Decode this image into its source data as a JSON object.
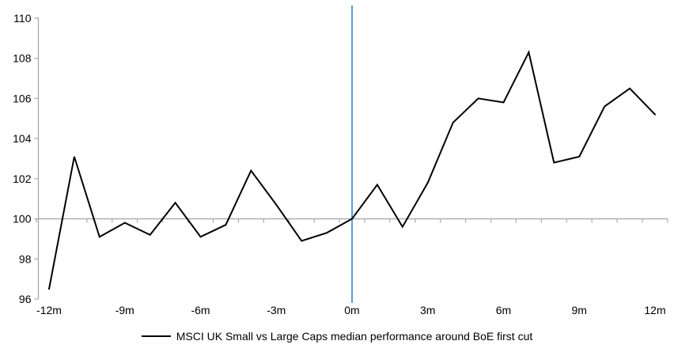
{
  "chart_data": {
    "type": "line",
    "title": "",
    "xlabel": "",
    "ylabel": "",
    "x_unit": "months relative to first BoE rate cut",
    "x": [
      -12,
      -11,
      -10,
      -9,
      -8,
      -7,
      -6,
      -5,
      -4,
      -3,
      -2,
      -1,
      0,
      1,
      2,
      3,
      4,
      5,
      6,
      7,
      8,
      9,
      10,
      11,
      12
    ],
    "series": [
      {
        "name": "MSCI UK Small vs Large Caps median performance around BoE first cut",
        "color": "#000000",
        "width": 2,
        "values": [
          96.5,
          103.1,
          99.1,
          99.8,
          99.2,
          100.8,
          99.1,
          99.7,
          102.4,
          100.7,
          98.9,
          99.3,
          100.0,
          101.7,
          99.6,
          101.8,
          104.8,
          106.0,
          105.8,
          108.3,
          102.8,
          103.1,
          105.6,
          106.5,
          105.2
        ]
      }
    ],
    "ylim": [
      96,
      110
    ],
    "y_ticks": [
      96,
      98,
      100,
      102,
      104,
      106,
      108,
      110
    ],
    "x_ticks": [
      -12,
      -9,
      -6,
      -3,
      0,
      3,
      6,
      9,
      12
    ],
    "x_tick_labels": [
      "-12m",
      "-9m",
      "-6m",
      "-3m",
      "0m",
      "3m",
      "6m",
      "9m",
      "12m"
    ],
    "baseline": {
      "value": 100,
      "color": "#ABABAB"
    },
    "event_line": {
      "x": 0,
      "color": "#5B9BD5",
      "width": 2
    },
    "axis_color": "#A6A6A6",
    "tick_label_color": "#000000",
    "grid": "off (single horizontal reference line at 100 only)",
    "legend_position": "bottom-center",
    "background": "#FFFFFF"
  }
}
